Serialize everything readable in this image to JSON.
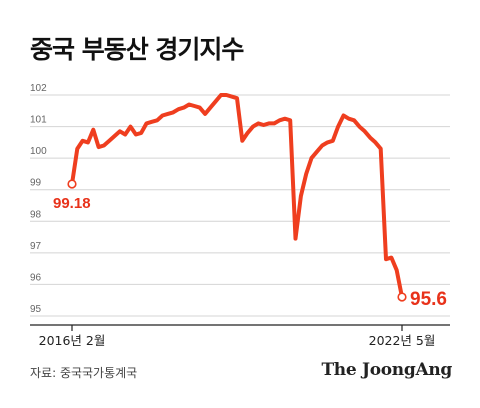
{
  "chart_data": {
    "type": "line",
    "title": "중국 부동산 경기지수",
    "ylim": [
      95,
      102
    ],
    "yticks": [
      95,
      96,
      97,
      98,
      99,
      100,
      101,
      102
    ],
    "grid": true,
    "series_color": "#ef3e1f",
    "x_labels": [
      {
        "index": 0,
        "label": "2016년 2월"
      },
      {
        "index": 75,
        "label": "2022년 5월"
      }
    ],
    "series": [
      {
        "values": [
          99.18,
          100.3,
          100.55,
          100.5,
          100.9,
          100.35,
          100.4,
          100.55,
          100.7,
          100.85,
          100.75,
          101.0,
          100.75,
          100.8,
          101.1,
          101.15,
          101.2,
          101.35,
          101.4,
          101.45,
          101.55,
          101.6,
          101.7,
          101.65,
          101.6,
          101.4,
          101.6,
          101.8,
          102.0,
          102.0,
          101.95,
          101.9,
          100.55,
          100.8,
          101.0,
          101.1,
          101.05,
          101.1,
          101.1,
          101.2,
          101.25,
          101.2,
          97.45,
          98.8,
          99.5,
          100.0,
          100.2,
          100.4,
          100.5,
          100.55,
          101.0,
          101.35,
          101.25,
          101.2,
          101.0,
          100.85,
          100.65,
          100.5,
          100.3,
          96.8,
          96.85,
          96.45,
          95.6
        ]
      }
    ],
    "annotations": [
      {
        "index": 0,
        "label": "99.18"
      },
      {
        "index": 62,
        "label": "95.6"
      }
    ]
  },
  "footer": {
    "source": "자료: 중국국가통계국",
    "brand": "The JoongAng"
  }
}
